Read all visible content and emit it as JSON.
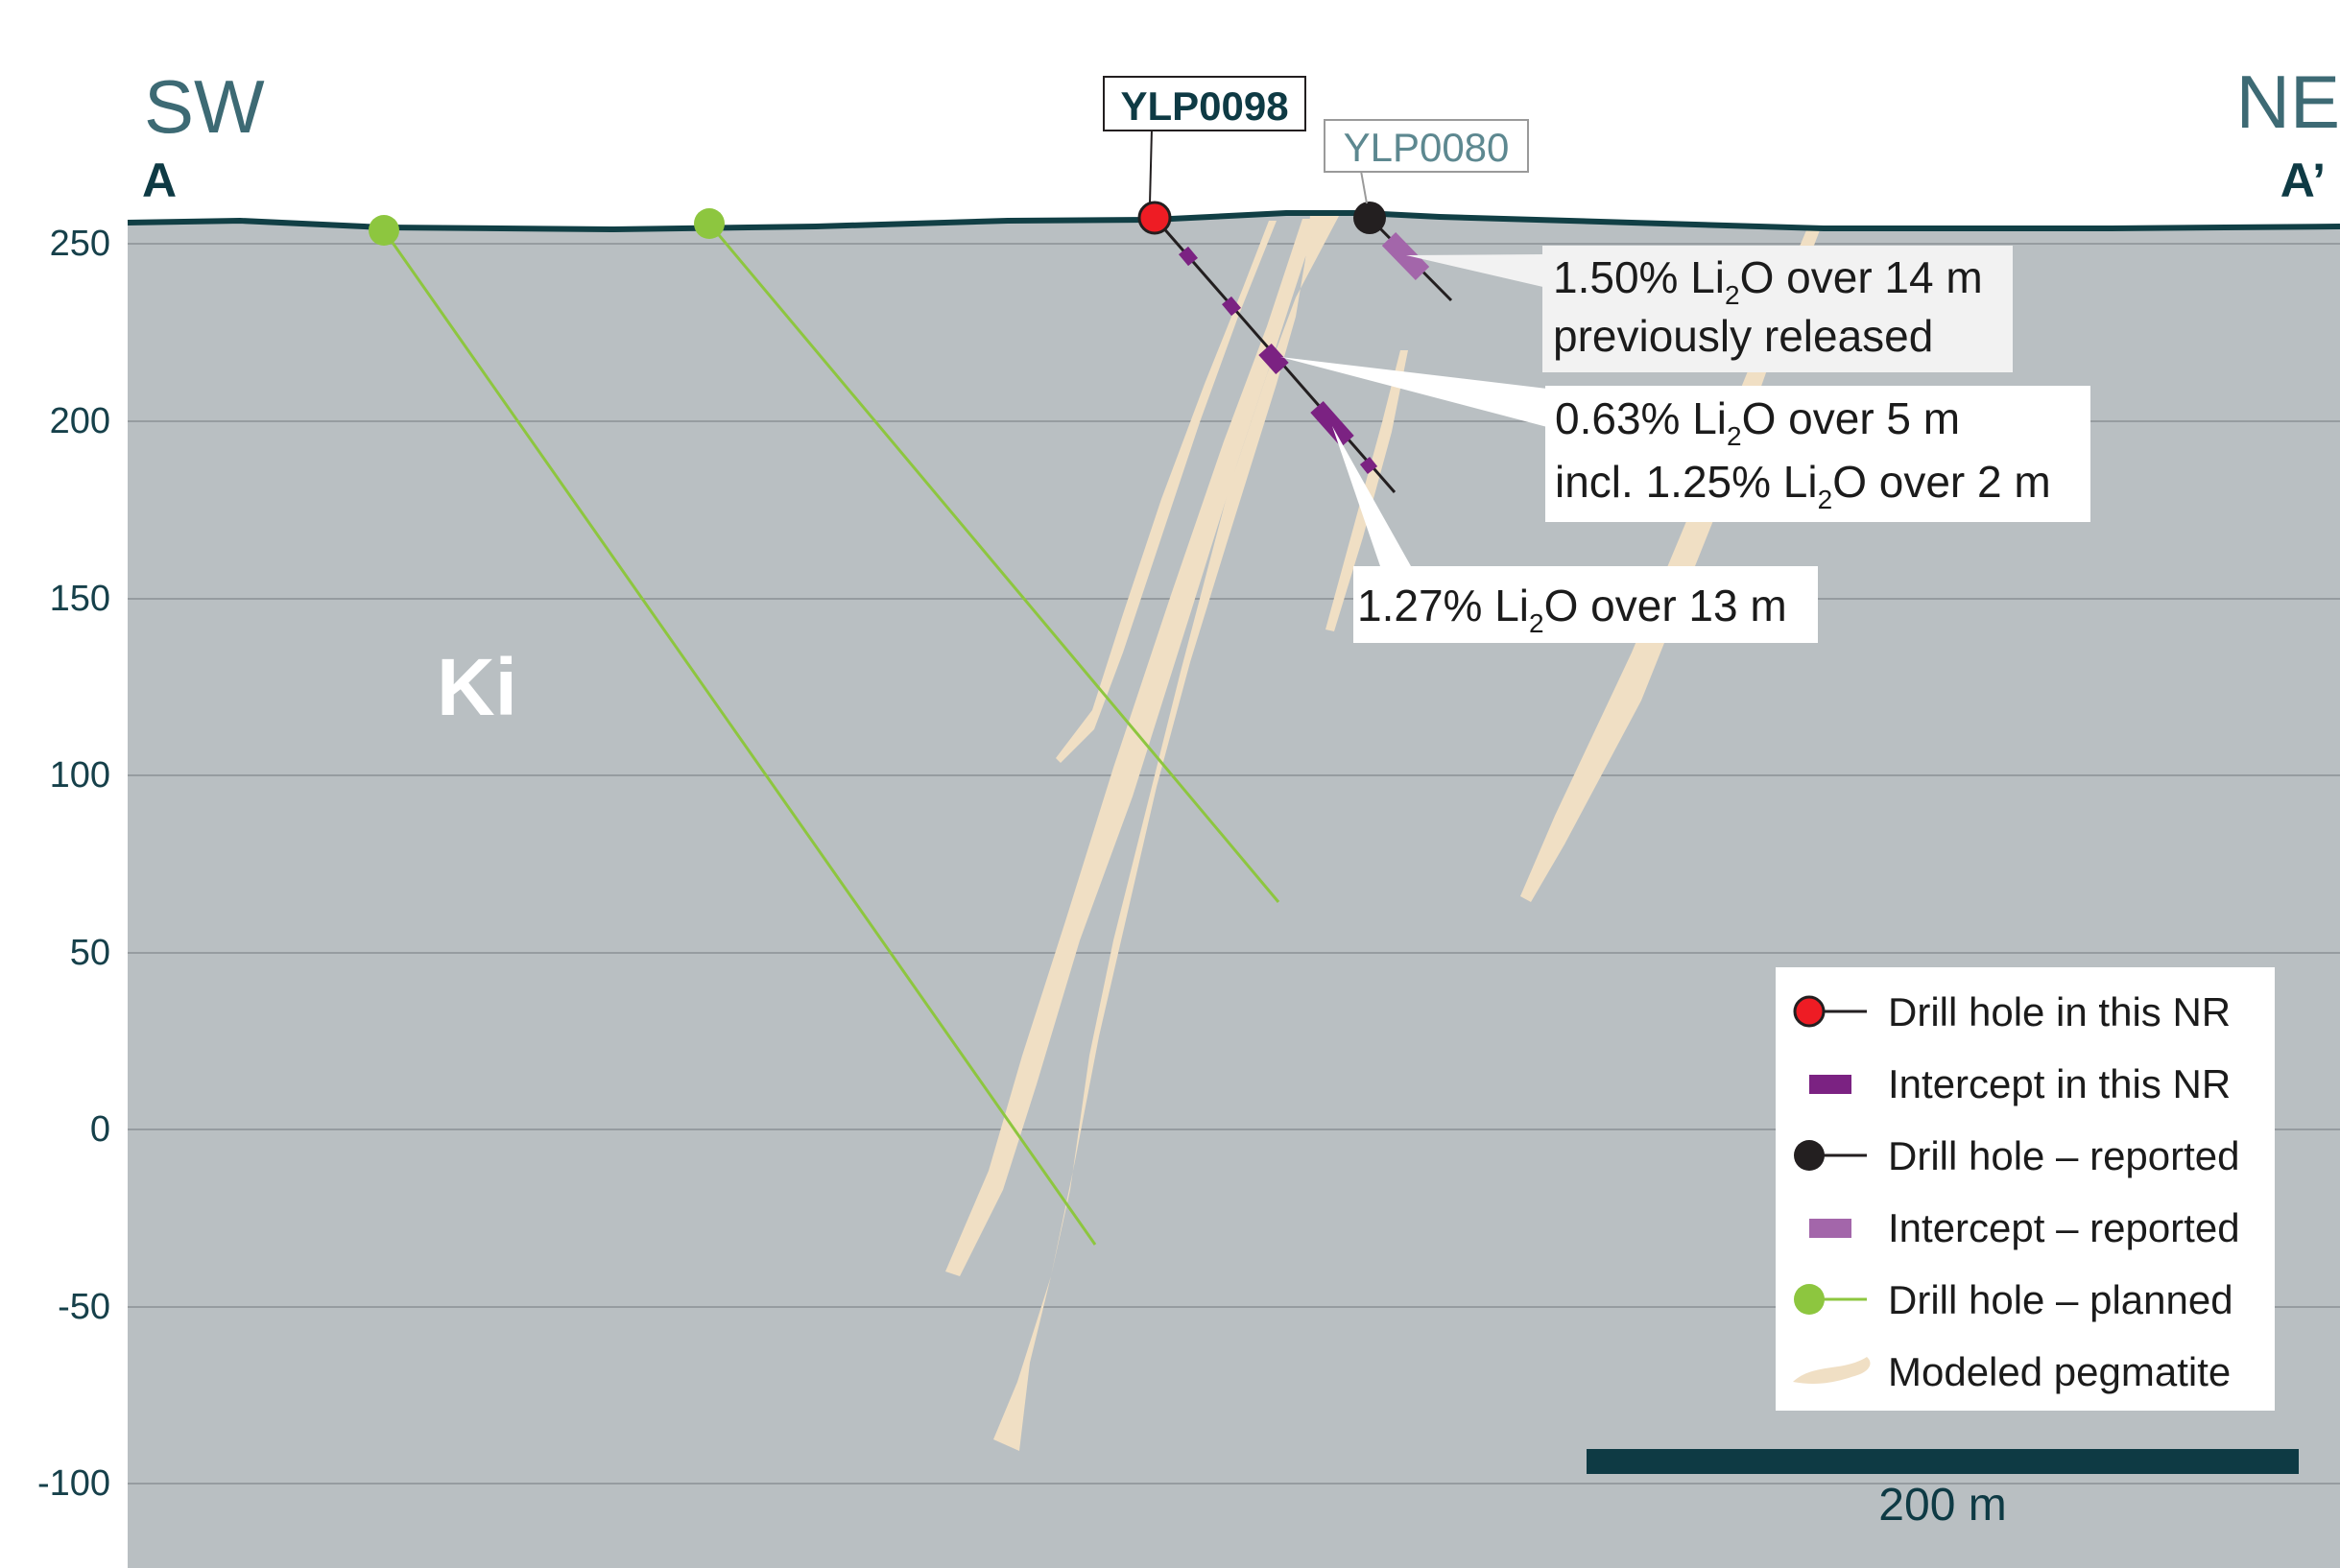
{
  "section": {
    "direction_left": "SW",
    "direction_right": "NE",
    "point_left": "A",
    "point_right": "A’",
    "unit_label": "Ki"
  },
  "y_axis": {
    "ticks": [
      "250",
      "200",
      "150",
      "100",
      "50",
      "0",
      "-50",
      "-100"
    ]
  },
  "holes": {
    "current_label": "YLP0098",
    "reported_label": "YLP0080"
  },
  "callouts": {
    "c1": {
      "line1_prefix": "1.50% Li",
      "sub": "2",
      "line1_suffix": "O over 14 m",
      "line2": "previously released"
    },
    "c2": {
      "line1_prefix": "0.63% Li",
      "sub": "2",
      "line1_suffix": "O over 5 m",
      "line2_prefix": "incl. 1.25% Li",
      "line2_sub": "2",
      "line2_suffix": "O over 2 m"
    },
    "c3": {
      "line1_prefix": "1.27% Li",
      "sub": "2",
      "line1_suffix": "O over 13 m"
    }
  },
  "legend": {
    "items": [
      "Drill hole in this NR",
      "Intercept in this NR",
      "Drill hole – reported",
      "Intercept – reported",
      "Drill hole – planned",
      "Modeled pegmatite"
    ]
  },
  "scale_bar": {
    "label": "200 m"
  },
  "colors": {
    "background_rock": "#b9bfc2",
    "topography": "#113f45",
    "pegmatite": "#f0dfc4",
    "hole_current": "#ee1c24",
    "hole_reported": "#231f20",
    "hole_planned": "#8dc63f",
    "intercept_current": "#7b2282",
    "intercept_reported": "#a366aa",
    "scale_bar": "#0e3a44"
  }
}
